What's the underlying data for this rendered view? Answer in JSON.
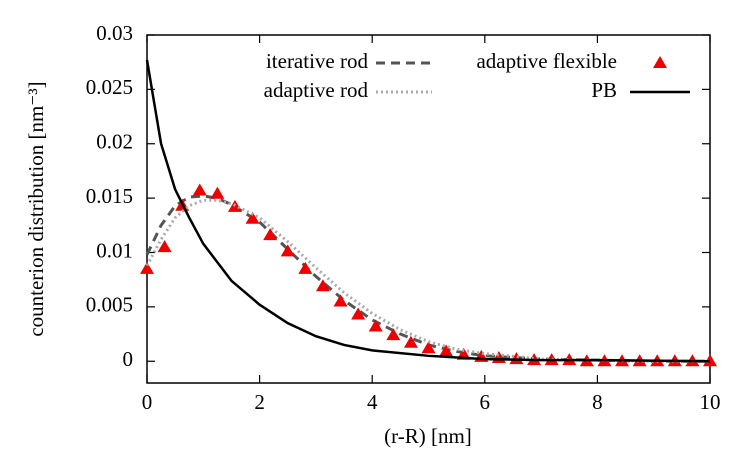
{
  "chart_data": {
    "type": "line",
    "xlabel": "(r-R) [nm]",
    "ylabel": "counterion distribution [nm⁻³]",
    "xlim": [
      0,
      10
    ],
    "ylim": [
      -0.002,
      0.03
    ],
    "xticks": [
      0,
      2,
      4,
      6,
      8,
      10
    ],
    "yticks": [
      0,
      0.005,
      0.01,
      0.015,
      0.02,
      0.025,
      0.03
    ],
    "grid": false,
    "legend": "top-right",
    "series": [
      {
        "name": "iterative rod",
        "color": "#555555",
        "style": "dashed",
        "x": [
          0,
          0.25,
          0.5,
          0.75,
          1,
          1.25,
          1.5,
          2,
          2.5,
          3,
          3.5,
          4,
          4.5,
          5,
          5.5,
          6,
          7,
          8,
          9,
          10
        ],
        "values": [
          0.0098,
          0.0125,
          0.0143,
          0.0151,
          0.0152,
          0.015,
          0.0144,
          0.0128,
          0.0103,
          0.0078,
          0.0056,
          0.0038,
          0.0025,
          0.0015,
          0.0009,
          0.0005,
          0.0002,
          0.0001,
          0,
          0
        ]
      },
      {
        "name": "adaptive flexible",
        "color": "#ee0000",
        "style": "triangles",
        "x": [
          0,
          0.3125,
          0.625,
          0.9375,
          1.25,
          1.5625,
          1.875,
          2.1875,
          2.5,
          2.8125,
          3.125,
          3.4375,
          3.75,
          4.0625,
          4.375,
          4.6875,
          5,
          5.3125,
          5.625,
          5.9375,
          6.25,
          6.5625,
          6.875,
          7.1875,
          7.5,
          7.8125,
          8.125,
          8.4375,
          8.75,
          9.0625,
          9.375,
          9.6875,
          10
        ],
        "values": [
          0.0085,
          0.0105,
          0.0143,
          0.0157,
          0.0154,
          0.0142,
          0.0131,
          0.0116,
          0.0101,
          0.0085,
          0.0069,
          0.0055,
          0.0043,
          0.0032,
          0.0024,
          0.0017,
          0.0012,
          0.0009,
          0.0006,
          0.0004,
          0.0003,
          0.0002,
          0.0001,
          0.0001,
          0.0001,
          0,
          0,
          0,
          0,
          0,
          0,
          0,
          0
        ]
      },
      {
        "name": "adaptive rod",
        "color": "#aaaaaa",
        "style": "dotted",
        "x": [
          0,
          0.25,
          0.5,
          0.75,
          1,
          1.25,
          1.5,
          2,
          2.5,
          3,
          3.5,
          4,
          4.5,
          5,
          5.5,
          6,
          7,
          8,
          9,
          10
        ],
        "values": [
          0.0088,
          0.0112,
          0.0132,
          0.0143,
          0.0148,
          0.0148,
          0.0145,
          0.0132,
          0.011,
          0.0086,
          0.0063,
          0.0044,
          0.0029,
          0.0018,
          0.0011,
          0.0007,
          0.0002,
          0.0001,
          0,
          0
        ]
      },
      {
        "name": "PB",
        "color": "#000000",
        "style": "solid",
        "x": [
          0,
          0.25,
          0.5,
          0.75,
          1,
          1.5,
          2,
          2.5,
          3,
          3.5,
          4,
          5,
          6,
          7,
          8,
          10
        ],
        "values": [
          0.0277,
          0.02,
          0.0158,
          0.0132,
          0.0108,
          0.0074,
          0.0052,
          0.0035,
          0.0023,
          0.0015,
          0.001,
          0.0005,
          0.0002,
          0.0001,
          0.0001,
          0
        ]
      }
    ]
  }
}
